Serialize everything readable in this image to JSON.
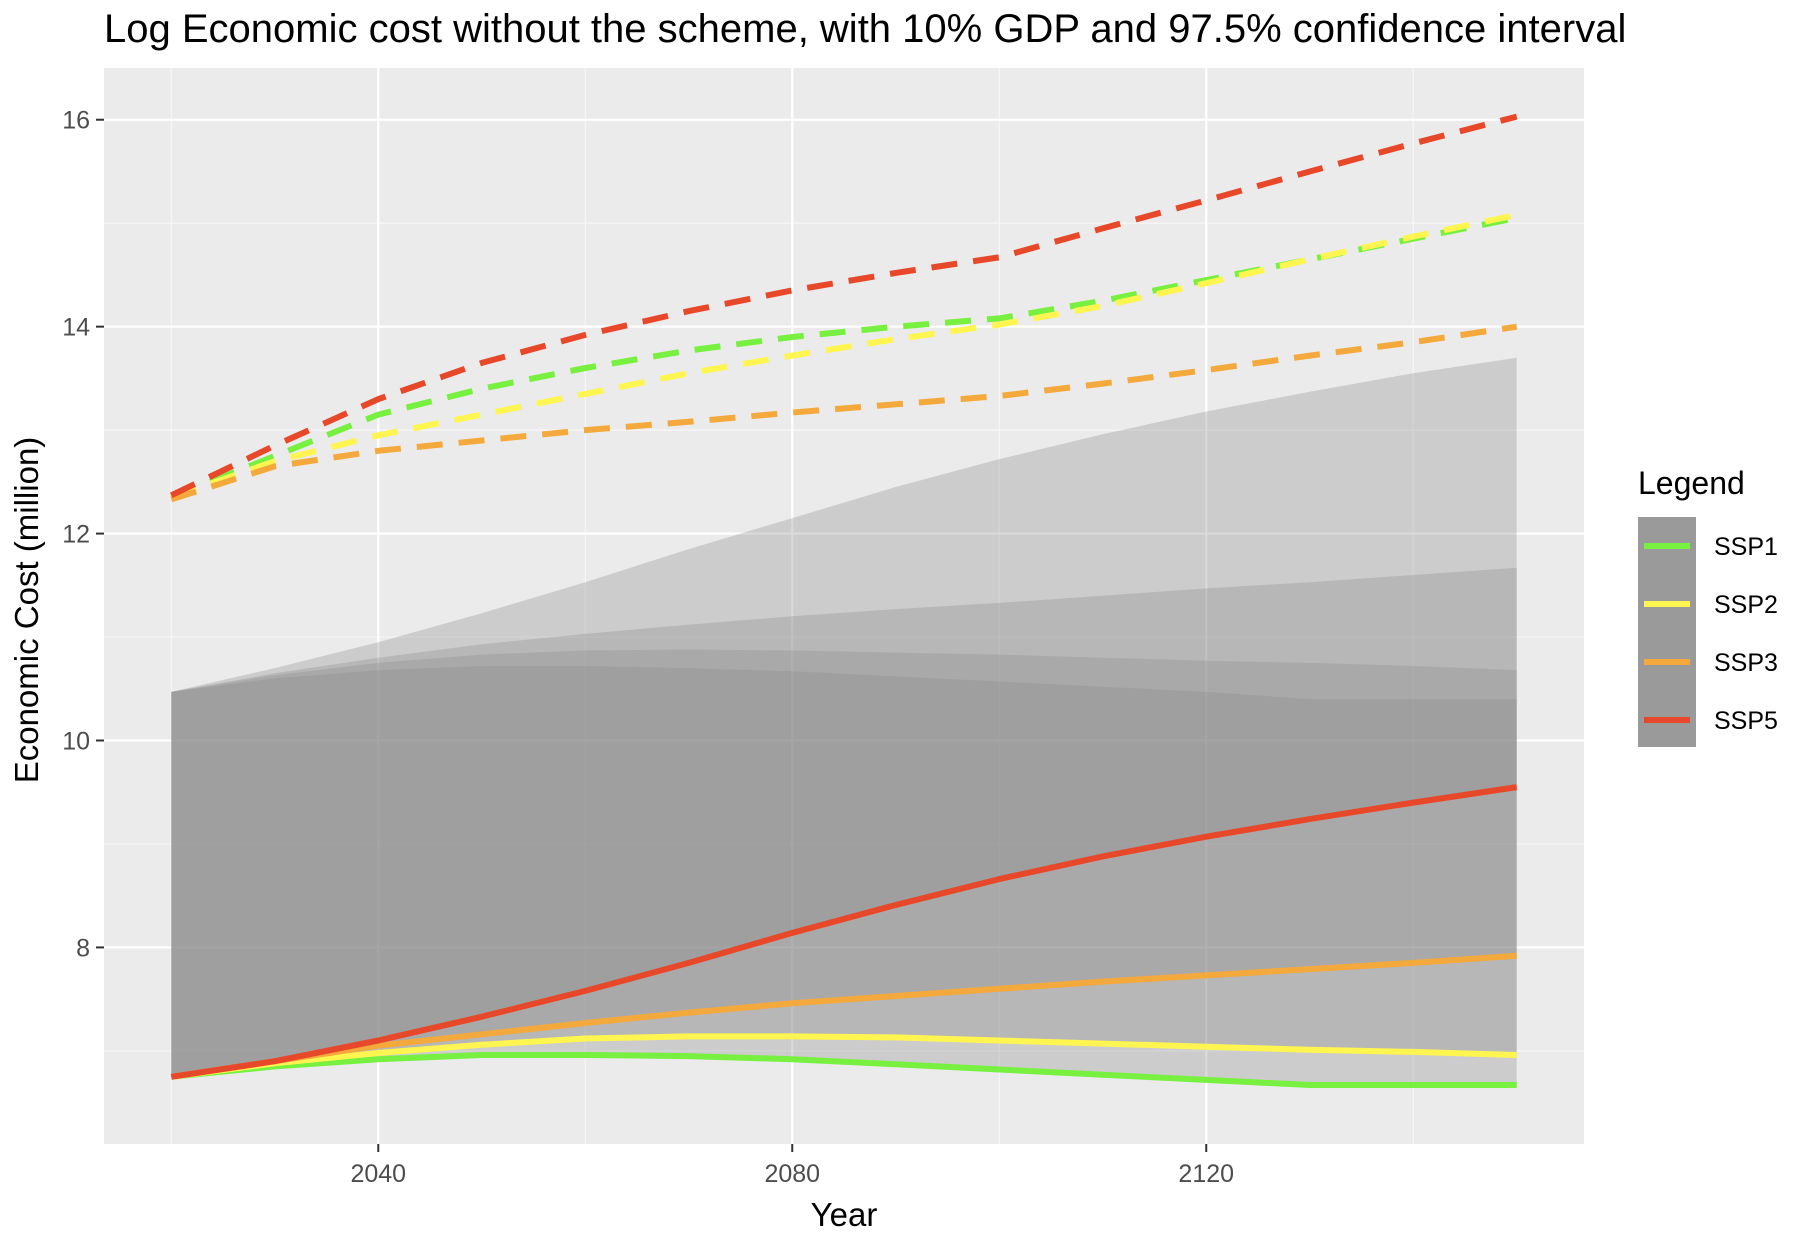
{
  "chart_data": {
    "type": "line",
    "title": "Log Economic cost without the scheme, with 10% GDP and 97.5% confidence interval",
    "xlabel": "Year",
    "ylabel": "Economic Cost (million)",
    "xlim": [
      2013.5,
      2156.5
    ],
    "ylim": [
      6.1,
      16.5
    ],
    "x_ticks": [
      2040,
      2080,
      2120
    ],
    "y_ticks": [
      8,
      10,
      12,
      14,
      16
    ],
    "grid": true,
    "legend": {
      "title": "Legend",
      "position": "right"
    },
    "x": [
      2020,
      2030,
      2040,
      2050,
      2060,
      2070,
      2080,
      2090,
      2100,
      2110,
      2120,
      2130,
      2140,
      2150
    ],
    "series": [
      {
        "name": "SSP1",
        "color": "#77f040",
        "mean": [
          6.75,
          6.85,
          6.92,
          6.96,
          6.96,
          6.95,
          6.92,
          6.87,
          6.82,
          6.77,
          6.72,
          6.67,
          6.67,
          6.67
        ],
        "upper": [
          12.35,
          12.75,
          13.15,
          13.4,
          13.6,
          13.77,
          13.9,
          14.0,
          14.08,
          14.25,
          14.45,
          14.65,
          14.85,
          15.05
        ],
        "band_upper": [
          10.47,
          10.6,
          10.68,
          10.72,
          10.72,
          10.7,
          10.67,
          10.62,
          10.57,
          10.52,
          10.47,
          10.4,
          10.4,
          10.4
        ]
      },
      {
        "name": "SSP2",
        "color": "#fff550",
        "mean": [
          6.75,
          6.88,
          6.98,
          7.06,
          7.12,
          7.14,
          7.14,
          7.13,
          7.1,
          7.07,
          7.04,
          7.01,
          6.99,
          6.96
        ],
        "upper": [
          12.35,
          12.7,
          12.95,
          13.15,
          13.35,
          13.55,
          13.72,
          13.88,
          14.02,
          14.2,
          14.42,
          14.65,
          14.87,
          15.08
        ],
        "band_upper": [
          10.47,
          10.63,
          10.75,
          10.83,
          10.87,
          10.88,
          10.87,
          10.85,
          10.83,
          10.8,
          10.77,
          10.75,
          10.72,
          10.68
        ]
      },
      {
        "name": "SSP3",
        "color": "#f4a93c",
        "mean": [
          6.75,
          6.9,
          7.05,
          7.16,
          7.27,
          7.37,
          7.46,
          7.53,
          7.6,
          7.67,
          7.73,
          7.79,
          7.85,
          7.92
        ],
        "upper": [
          12.33,
          12.65,
          12.8,
          12.9,
          13.0,
          13.08,
          13.17,
          13.25,
          13.33,
          13.45,
          13.58,
          13.72,
          13.85,
          14.0
        ],
        "band_upper": [
          10.47,
          10.65,
          10.8,
          10.93,
          11.03,
          11.12,
          11.2,
          11.27,
          11.33,
          11.4,
          11.47,
          11.53,
          11.6,
          11.67
        ]
      },
      {
        "name": "SSP5",
        "color": "#e8482a",
        "mean": [
          6.75,
          6.9,
          7.1,
          7.33,
          7.58,
          7.85,
          8.14,
          8.41,
          8.66,
          8.88,
          9.07,
          9.24,
          9.4,
          9.55
        ],
        "upper": [
          12.37,
          12.85,
          13.3,
          13.65,
          13.92,
          14.15,
          14.35,
          14.52,
          14.67,
          14.95,
          15.22,
          15.5,
          15.77,
          16.03
        ],
        "band_upper": [
          10.47,
          10.7,
          10.95,
          11.23,
          11.53,
          11.85,
          12.15,
          12.45,
          12.72,
          12.96,
          13.18,
          13.37,
          13.55,
          13.7
        ]
      }
    ]
  }
}
